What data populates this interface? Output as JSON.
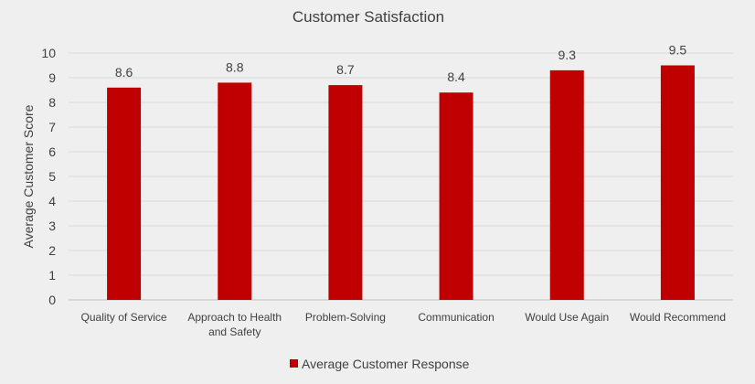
{
  "chart_data": {
    "type": "bar",
    "title": "Customer Satisfaction",
    "xlabel": "",
    "ylabel": "Average Customer Score",
    "categories": [
      [
        "Quality of Service"
      ],
      [
        "Approach to Health",
        "and Safety"
      ],
      [
        "Problem-Solving"
      ],
      [
        "Communication"
      ],
      [
        "Would Use Again"
      ],
      [
        "Would Recommend"
      ]
    ],
    "series": [
      {
        "name": "Average Customer Response",
        "color": "#c00000",
        "values": [
          8.6,
          8.8,
          8.7,
          8.4,
          9.3,
          9.5
        ],
        "labels": [
          "8.6",
          "8.8",
          "8.7",
          "8.4",
          "9.3",
          "9.5"
        ]
      }
    ],
    "ylim": [
      0,
      10
    ],
    "yticks": [
      "0",
      "1",
      "2",
      "3",
      "4",
      "5",
      "6",
      "7",
      "8",
      "9",
      "10"
    ],
    "grid": true,
    "legend_position": "bottom"
  }
}
